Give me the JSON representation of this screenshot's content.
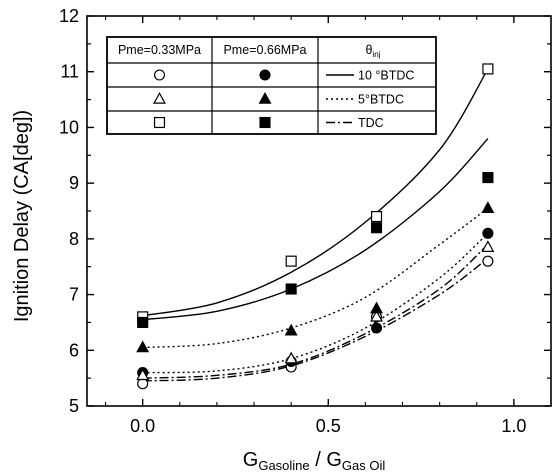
{
  "chart_data": {
    "type": "scatter",
    "xlabel": {
      "main": "G",
      "sub1": "Gasoline",
      "sep": " / ",
      "main2": "G",
      "sub2": "Gas Oil"
    },
    "ylabel": "Ignition Delay (CA[deg])",
    "xlim": [
      -0.15,
      1.1
    ],
    "ylim": [
      5,
      12
    ],
    "xticks": [
      0.0,
      0.5,
      1.0
    ],
    "xtick_labels": [
      "0.0",
      "0.5",
      "1.0"
    ],
    "yticks": [
      5,
      6,
      7,
      8,
      9,
      10,
      11,
      12
    ],
    "ytick_labels": [
      "5",
      "6",
      "7",
      "8",
      "9",
      "10",
      "11",
      "12"
    ],
    "grid": false,
    "legend": {
      "placement": "top-left",
      "headers": {
        "low_load": "Pme=0.33MPa",
        "high_load": "Pme=0.66MPa",
        "timing_main": "θ",
        "timing_sub": "inj"
      },
      "rows": [
        {
          "timing": "10 °BTDC",
          "marker": "circle"
        },
        {
          "timing": "5°BTDC",
          "marker": "triangle"
        },
        {
          "timing": "TDC",
          "marker": "square"
        }
      ]
    },
    "series": [
      {
        "timing": "10 °BTDC",
        "pme": "0.33MPa",
        "marker": "circle",
        "filled": false,
        "x": [
          0.0,
          0.4,
          0.63,
          0.93
        ],
        "y": [
          5.4,
          5.7,
          6.6,
          7.6
        ]
      },
      {
        "timing": "10 °BTDC",
        "pme": "0.66MPa",
        "marker": "circle",
        "filled": true,
        "x": [
          0.0,
          0.4,
          0.63,
          0.93
        ],
        "y": [
          5.6,
          5.8,
          6.4,
          8.1
        ]
      },
      {
        "timing": "5°BTDC",
        "pme": "0.33MPa",
        "marker": "triangle",
        "filled": false,
        "x": [
          0.0,
          0.4,
          0.63,
          0.93
        ],
        "y": [
          5.55,
          5.85,
          6.6,
          7.85
        ]
      },
      {
        "timing": "5°BTDC",
        "pme": "0.66MPa",
        "marker": "triangle",
        "filled": true,
        "x": [
          0.0,
          0.4,
          0.63,
          0.93
        ],
        "y": [
          6.05,
          6.35,
          6.75,
          8.55
        ]
      },
      {
        "timing": "TDC",
        "pme": "0.33MPa",
        "marker": "square",
        "filled": false,
        "x": [
          0.0,
          0.4,
          0.63,
          0.93
        ],
        "y": [
          6.6,
          7.6,
          8.4,
          11.05
        ]
      },
      {
        "timing": "TDC",
        "pme": "0.66MPa",
        "marker": "square",
        "filled": true,
        "x": [
          0.0,
          0.4,
          0.63,
          0.93
        ],
        "y": [
          6.5,
          7.1,
          8.2,
          9.1
        ]
      }
    ],
    "fit_curves": [
      {
        "style": "solid",
        "x": [
          0.0,
          0.2,
          0.4,
          0.6,
          0.8,
          0.93
        ],
        "y": [
          6.62,
          6.85,
          7.4,
          8.3,
          9.6,
          11.05
        ]
      },
      {
        "style": "solid",
        "x": [
          0.0,
          0.2,
          0.4,
          0.6,
          0.8,
          0.93
        ],
        "y": [
          6.55,
          6.7,
          7.1,
          7.8,
          8.85,
          9.8
        ]
      },
      {
        "style": "dotted",
        "x": [
          0.0,
          0.2,
          0.4,
          0.6,
          0.8,
          0.93
        ],
        "y": [
          6.05,
          6.12,
          6.4,
          6.95,
          7.9,
          8.55
        ]
      },
      {
        "style": "dotted",
        "x": [
          0.0,
          0.2,
          0.4,
          0.6,
          0.8,
          0.93
        ],
        "y": [
          5.6,
          5.63,
          5.85,
          6.4,
          7.3,
          8.1
        ]
      },
      {
        "style": "dashdot",
        "x": [
          0.0,
          0.2,
          0.4,
          0.6,
          0.8,
          0.93
        ],
        "y": [
          5.5,
          5.55,
          5.75,
          6.3,
          7.1,
          7.9
        ]
      },
      {
        "style": "dashdot",
        "x": [
          0.0,
          0.2,
          0.4,
          0.6,
          0.8,
          0.93
        ],
        "y": [
          5.45,
          5.5,
          5.72,
          6.25,
          7.0,
          7.65
        ]
      }
    ]
  }
}
